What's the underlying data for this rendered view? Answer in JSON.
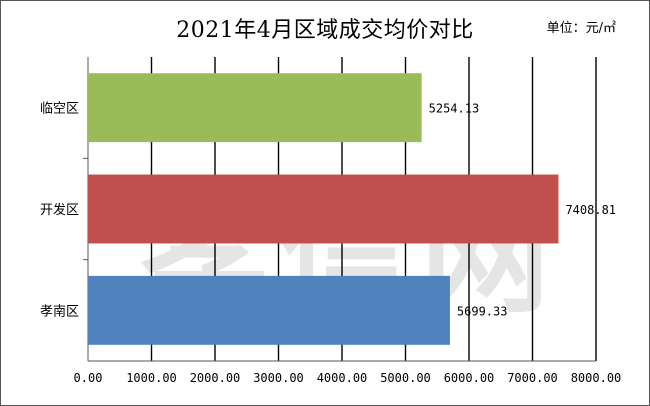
{
  "chart_data": {
    "type": "bar",
    "orientation": "horizontal",
    "title": "2021年4月区域成交均价对比",
    "unit_label": "单位：元/㎡",
    "watermark": "孝信网",
    "categories": [
      "临空区",
      "开发区",
      "孝南区"
    ],
    "values": [
      5254.13,
      7408.81,
      5699.33
    ],
    "data_labels": [
      "5254.13",
      "7408.81",
      "5699.33"
    ],
    "colors": [
      "#9bbb59",
      "#c0504d",
      "#4f81bd"
    ],
    "xlim": [
      0,
      8000
    ],
    "x_ticks": [
      0,
      1000,
      2000,
      3000,
      4000,
      5000,
      6000,
      7000,
      8000
    ],
    "x_tick_labels": [
      "0.00",
      "1000.00",
      "2000.00",
      "3000.00",
      "4000.00",
      "5000.00",
      "6000.00",
      "7000.00",
      "8000.00"
    ],
    "grid": true,
    "legend": "none"
  }
}
